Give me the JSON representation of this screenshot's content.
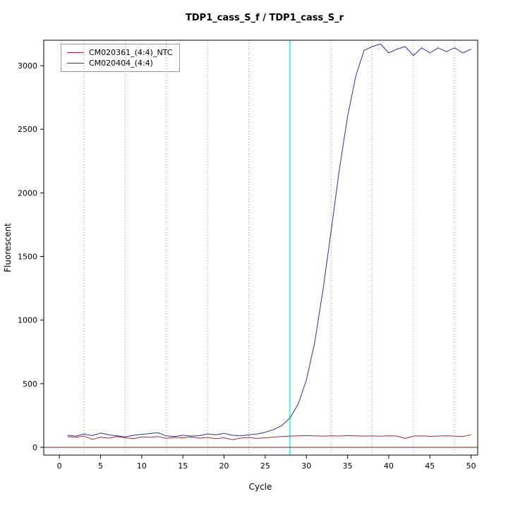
{
  "chart_data": {
    "type": "line",
    "title": "TDP1_cass_S_f / TDP1_cass_S_r",
    "xlabel": "Cycle",
    "ylabel": "Fluorescent",
    "xlim": [
      -1.9,
      50.8
    ],
    "ylim": [
      -61,
      3200
    ],
    "xticks": [
      0,
      5,
      10,
      15,
      20,
      25,
      30,
      35,
      40,
      45,
      50
    ],
    "yticks": [
      0,
      500,
      1000,
      1500,
      2000,
      2500,
      3000
    ],
    "gridlines_x": [
      3,
      8,
      13,
      18,
      23,
      28,
      33,
      38,
      43,
      48
    ],
    "threshold_cycle": 28,
    "baseline_value": 0,
    "grid_on": true,
    "legend_position": "top-left",
    "colors": {
      "grid": "#cc7777",
      "threshold": "#00e5e5",
      "baseline": "#8b1a1a",
      "box": "#000000"
    },
    "series": [
      {
        "name": "CM020361_(4:4)_NTC",
        "color": "#a03030",
        "x_start": 1,
        "values": [
          85,
          78,
          88,
          62,
          80,
          72,
          85,
          75,
          68,
          82,
          78,
          85,
          70,
          78,
          75,
          82,
          72,
          78,
          68,
          75,
          60,
          72,
          78,
          70,
          75,
          80,
          85,
          88,
          90,
          92,
          90,
          88,
          91,
          89,
          92,
          90,
          88,
          90,
          87,
          91,
          89,
          70,
          88,
          90,
          86,
          89,
          91,
          88,
          85,
          100
        ]
      },
      {
        "name": "CM020404_(4:4)",
        "color": "#3030a0",
        "x_start": 1,
        "values": [
          95,
          88,
          105,
          92,
          112,
          98,
          90,
          82,
          95,
          102,
          108,
          115,
          90,
          85,
          95,
          88,
          92,
          105,
          98,
          110,
          95,
          90,
          98,
          105,
          118,
          140,
          170,
          230,
          340,
          530,
          820,
          1230,
          1700,
          2180,
          2600,
          2920,
          3120,
          3150,
          3170,
          3100,
          3130,
          3150,
          3080,
          3140,
          3100,
          3140,
          3110,
          3140,
          3100,
          3130
        ]
      }
    ]
  }
}
